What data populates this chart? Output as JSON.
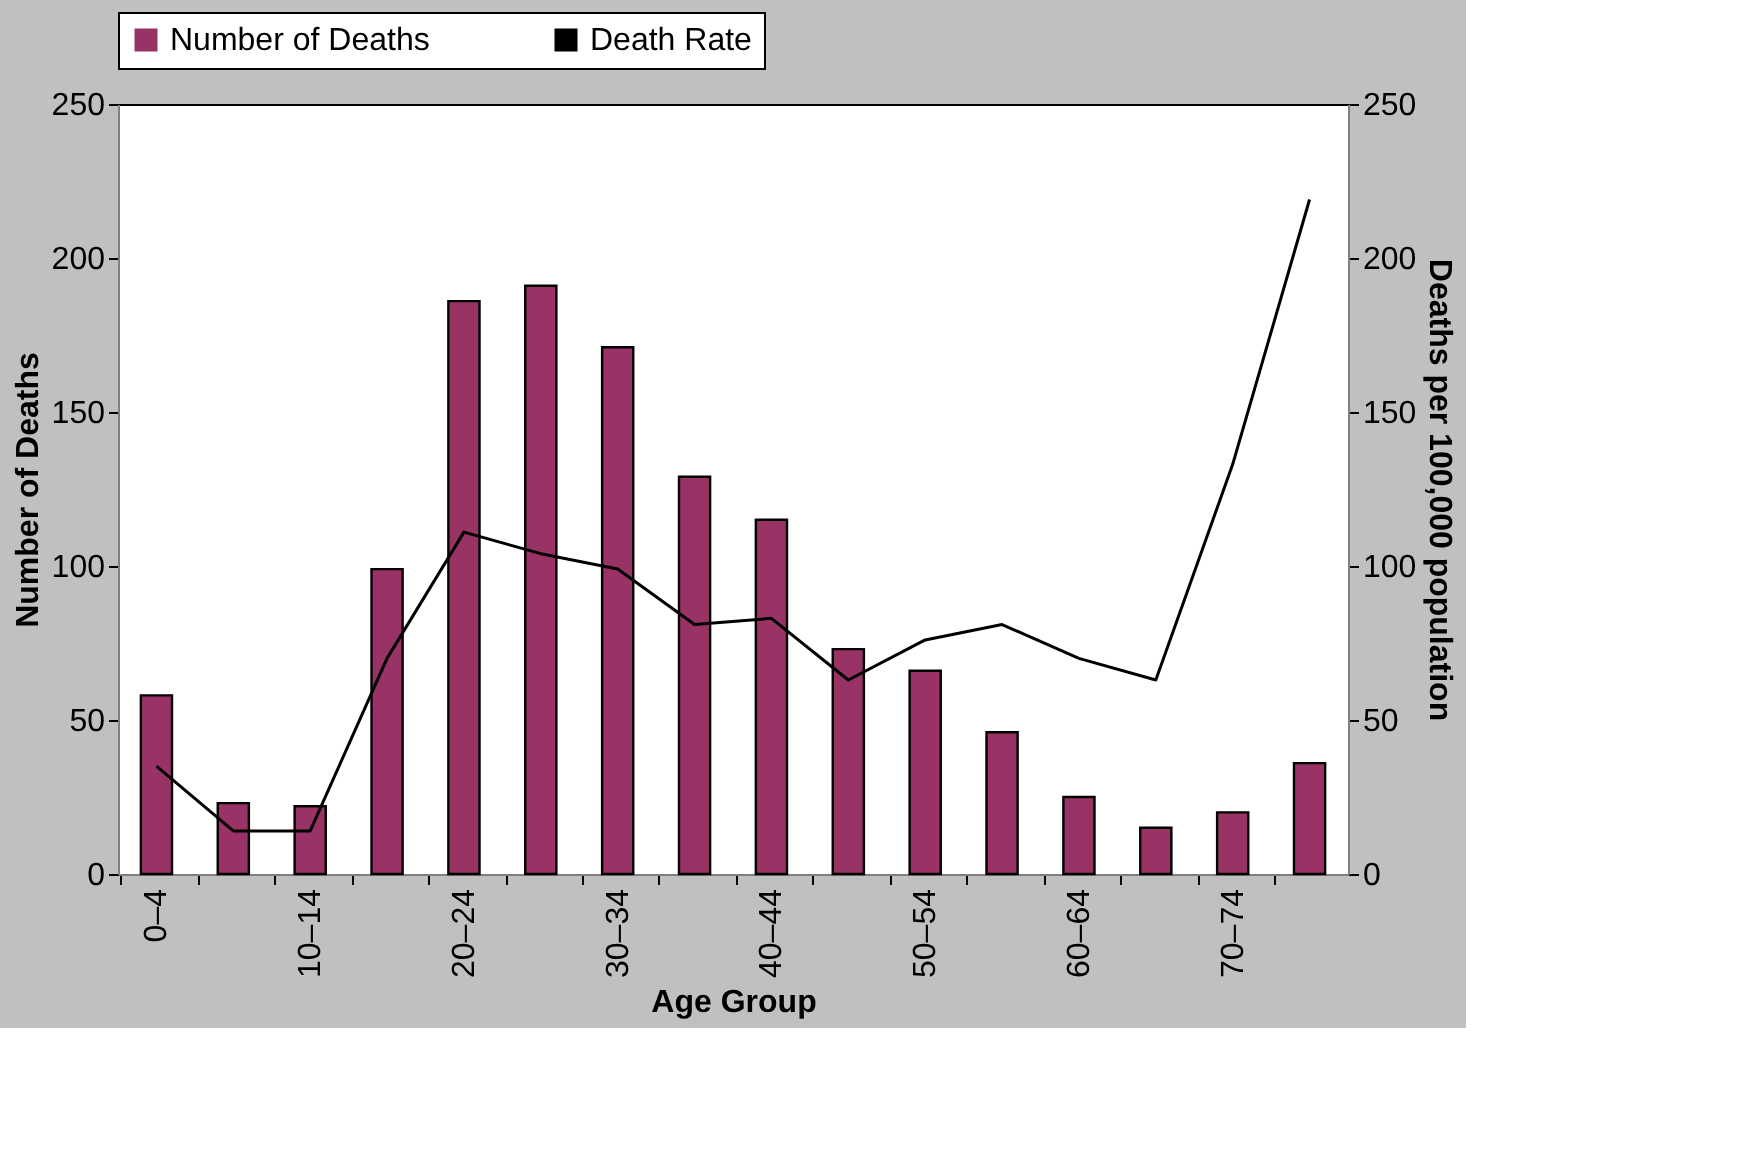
{
  "chart_data": {
    "type": "bar",
    "xlabel": "Age Group",
    "ylabel": "Number of Deaths",
    "y2label": "Deaths per 100,000 population",
    "categories": [
      "0–4",
      null,
      "10–14",
      null,
      "20–24",
      null,
      "30–34",
      null,
      "40–44",
      null,
      "50–54",
      null,
      "60–64",
      null,
      "70–74",
      null
    ],
    "series": [
      {
        "name": "Number of Deaths",
        "color": "#993366",
        "values": [
          58,
          23,
          22,
          99,
          186,
          191,
          171,
          129,
          115,
          73,
          66,
          46,
          25,
          15,
          20,
          36
        ]
      },
      {
        "name": "Death Rate",
        "type": "line",
        "axis": "y2",
        "color": "#000000",
        "values": [
          35,
          14,
          14,
          70,
          111,
          104,
          99,
          81,
          83,
          63,
          76,
          81,
          70,
          63,
          133,
          219
        ]
      }
    ],
    "ylim": [
      0,
      250
    ],
    "yticks": [
      0,
      50,
      100,
      150,
      200,
      250
    ],
    "y2lim": [
      0,
      250
    ],
    "y2ticks": [
      0,
      50,
      100,
      150,
      200,
      250
    ],
    "legend": "top",
    "grid": false
  }
}
